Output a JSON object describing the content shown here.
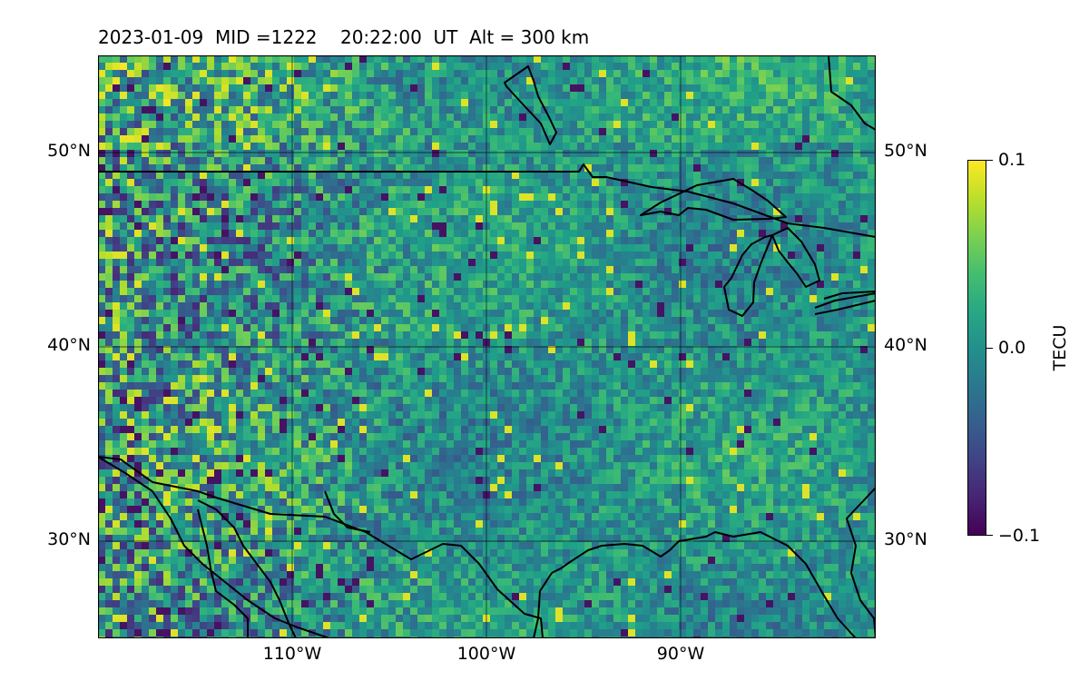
{
  "title": {
    "date": "2023-01-09",
    "mid": "MID =1222",
    "time": "20:22:00  UT",
    "altitude": "Alt = 300 km"
  },
  "map": {
    "lat_labels": [
      "50°N",
      "40°N",
      "30°N"
    ],
    "lon_labels": [
      "110°W",
      "100°W",
      "90°W"
    ],
    "lat_range": [
      25,
      55
    ],
    "lon_range": [
      -120,
      -80
    ],
    "gridlines": true,
    "coastline_color": "#000000"
  },
  "colorbar": {
    "label": "TECU",
    "colormap": "viridis",
    "ticks": [
      "0.1",
      "0.0",
      "−0.1"
    ],
    "vmin": -0.1,
    "vmax": 0.1
  }
}
